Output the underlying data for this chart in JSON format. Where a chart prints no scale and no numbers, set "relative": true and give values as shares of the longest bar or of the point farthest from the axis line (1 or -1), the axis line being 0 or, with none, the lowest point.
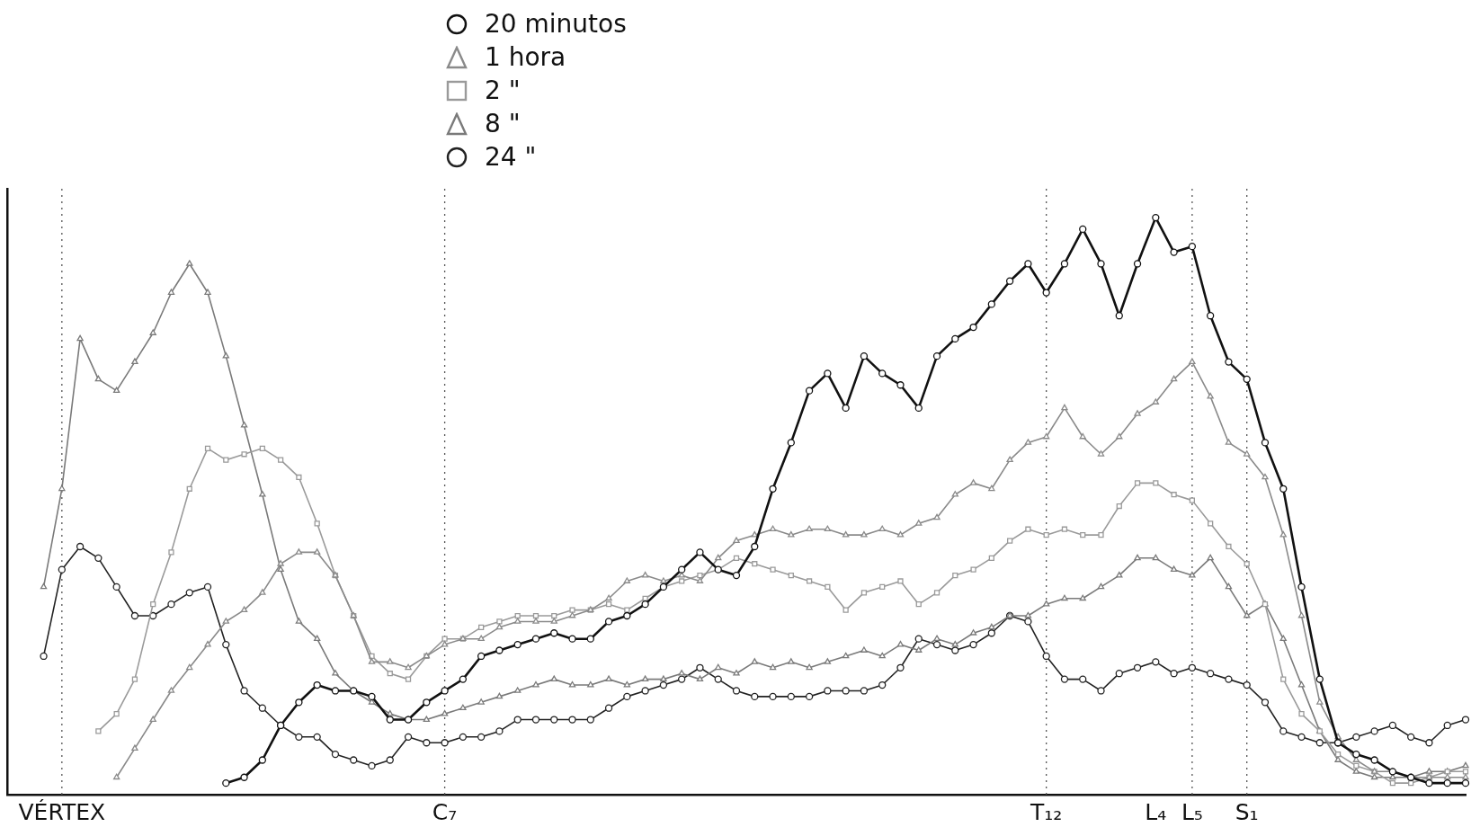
{
  "chart_data": {
    "type": "line",
    "relative": true,
    "legend": "top",
    "grid": false,
    "line_style": "solid",
    "categories": [
      null,
      null,
      null,
      "VÉRTEX",
      null,
      null,
      null,
      null,
      null,
      null,
      null,
      null,
      null,
      null,
      null,
      null,
      null,
      null,
      null,
      null,
      null,
      null,
      null,
      null,
      "C₇",
      null,
      null,
      null,
      null,
      null,
      null,
      null,
      null,
      null,
      null,
      null,
      null,
      null,
      null,
      null,
      null,
      null,
      null,
      null,
      null,
      null,
      null,
      null,
      null,
      null,
      null,
      null,
      null,
      null,
      null,
      null,
      null,
      "T₁₂",
      null,
      null,
      null,
      null,
      null,
      "L₄",
      null,
      "L₅",
      null,
      null,
      "S₁",
      null,
      null,
      null,
      null,
      null,
      null,
      null,
      null,
      null,
      null,
      null,
      null
    ],
    "ref_lines": [
      {
        "axis": "x",
        "value": "VÉRTEX",
        "line_style": "dotted",
        "color": "#555555"
      },
      {
        "axis": "x",
        "value": "C₇",
        "line_style": "dotted",
        "color": "#555555"
      },
      {
        "axis": "x",
        "value": "T₁₂",
        "line_style": "dotted",
        "color": "#555555"
      },
      {
        "axis": "x",
        "value": "L₅",
        "line_style": "dotted",
        "color": "#555555"
      },
      {
        "axis": "x",
        "value": "S₁",
        "line_style": "dotted",
        "color": "#555555"
      }
    ],
    "series": [
      {
        "name": "20 minutos",
        "color": "#111111",
        "marker": "circle",
        "values": [
          null,
          null,
          null,
          null,
          null,
          null,
          null,
          null,
          null,
          null,
          null,
          null,
          0.02,
          0.03,
          0.06,
          0.12,
          0.16,
          0.19,
          0.18,
          0.18,
          0.17,
          0.13,
          0.13,
          0.16,
          0.18,
          0.2,
          0.24,
          0.25,
          0.26,
          0.27,
          0.28,
          0.27,
          0.27,
          0.3,
          0.31,
          0.33,
          0.36,
          0.39,
          0.42,
          0.39,
          0.38,
          0.43,
          0.53,
          0.61,
          0.7,
          0.73,
          0.67,
          0.76,
          0.73,
          0.71,
          0.67,
          0.76,
          0.79,
          0.81,
          0.85,
          0.89,
          0.92,
          0.87,
          0.92,
          0.98,
          0.92,
          0.83,
          0.92,
          1.0,
          0.94,
          0.95,
          0.83,
          0.75,
          0.72,
          0.61,
          0.53,
          0.36,
          0.2,
          0.09,
          0.07,
          0.06,
          0.04,
          0.03,
          0.02,
          0.02,
          0.02
        ]
      },
      {
        "name": "1 hora",
        "color": "#8a8a8a",
        "marker": "triangle",
        "values": [
          null,
          null,
          null,
          null,
          null,
          null,
          0.03,
          0.08,
          0.13,
          0.18,
          0.22,
          0.26,
          0.3,
          0.32,
          0.35,
          0.4,
          0.42,
          0.42,
          0.38,
          0.31,
          0.23,
          0.23,
          0.22,
          0.24,
          0.26,
          0.27,
          0.27,
          0.29,
          0.3,
          0.3,
          0.3,
          0.31,
          0.32,
          0.34,
          0.37,
          0.38,
          0.37,
          0.38,
          0.37,
          0.41,
          0.44,
          0.45,
          0.46,
          0.45,
          0.46,
          0.46,
          0.45,
          0.45,
          0.46,
          0.45,
          0.47,
          0.48,
          0.52,
          0.54,
          0.53,
          0.58,
          0.61,
          0.62,
          0.67,
          0.62,
          0.59,
          0.62,
          0.66,
          0.68,
          0.72,
          0.75,
          0.69,
          0.61,
          0.59,
          0.55,
          0.45,
          0.31,
          0.16,
          0.1,
          0.06,
          0.04,
          0.04,
          0.03,
          0.03,
          0.03,
          0.03
        ]
      },
      {
        "name": "2 \"",
        "color": "#9a9a9a",
        "marker": "square",
        "values": [
          null,
          null,
          null,
          null,
          null,
          0.11,
          0.14,
          0.2,
          0.33,
          0.42,
          0.53,
          0.6,
          0.58,
          0.59,
          0.6,
          0.58,
          0.55,
          0.47,
          0.38,
          0.31,
          0.24,
          0.21,
          0.2,
          0.24,
          0.27,
          0.27,
          0.29,
          0.3,
          0.31,
          0.31,
          0.31,
          0.32,
          0.32,
          0.33,
          0.32,
          0.34,
          0.36,
          0.37,
          0.38,
          0.39,
          0.41,
          0.4,
          0.39,
          0.38,
          0.37,
          0.36,
          0.32,
          0.35,
          0.36,
          0.37,
          0.33,
          0.35,
          0.38,
          0.39,
          0.41,
          0.44,
          0.46,
          0.45,
          0.46,
          0.45,
          0.45,
          0.5,
          0.54,
          0.54,
          0.52,
          0.51,
          0.47,
          0.43,
          0.4,
          0.33,
          0.2,
          0.14,
          0.11,
          0.07,
          0.05,
          0.04,
          0.02,
          0.02,
          0.03,
          0.04,
          0.04
        ]
      },
      {
        "name": "8 \"",
        "color": "#7a7a7a",
        "marker": "triangle",
        "values": [
          null,
          null,
          0.36,
          0.53,
          0.79,
          0.72,
          0.7,
          0.75,
          0.8,
          0.87,
          0.92,
          0.87,
          0.76,
          0.64,
          0.52,
          0.39,
          0.3,
          0.27,
          0.21,
          0.18,
          0.16,
          0.14,
          0.13,
          0.13,
          0.14,
          0.15,
          0.16,
          0.17,
          0.18,
          0.19,
          0.2,
          0.19,
          0.19,
          0.2,
          0.19,
          0.2,
          0.2,
          0.21,
          0.2,
          0.22,
          0.21,
          0.23,
          0.22,
          0.23,
          0.22,
          0.23,
          0.24,
          0.25,
          0.24,
          0.26,
          0.25,
          0.27,
          0.26,
          0.28,
          0.29,
          0.31,
          0.31,
          0.33,
          0.34,
          0.34,
          0.36,
          0.38,
          0.41,
          0.41,
          0.39,
          0.38,
          0.41,
          0.36,
          0.31,
          0.33,
          0.27,
          0.19,
          0.11,
          0.06,
          0.04,
          0.03,
          0.03,
          0.03,
          0.04,
          0.04,
          0.05
        ]
      },
      {
        "name": "24 \"",
        "color": "#222222",
        "marker": "circle",
        "values": [
          null,
          null,
          0.24,
          0.39,
          0.43,
          0.41,
          0.36,
          0.31,
          0.31,
          0.33,
          0.35,
          0.36,
          0.26,
          0.18,
          0.15,
          0.12,
          0.1,
          0.1,
          0.07,
          0.06,
          0.05,
          0.06,
          0.1,
          0.09,
          0.09,
          0.1,
          0.1,
          0.11,
          0.13,
          0.13,
          0.13,
          0.13,
          0.13,
          0.15,
          0.17,
          0.18,
          0.19,
          0.2,
          0.22,
          0.2,
          0.18,
          0.17,
          0.17,
          0.17,
          0.17,
          0.18,
          0.18,
          0.18,
          0.19,
          0.22,
          0.27,
          0.26,
          0.25,
          0.26,
          0.28,
          0.31,
          0.3,
          0.24,
          0.2,
          0.2,
          0.18,
          0.21,
          0.22,
          0.23,
          0.21,
          0.22,
          0.21,
          0.2,
          0.19,
          0.16,
          0.11,
          0.1,
          0.09,
          0.09,
          0.1,
          0.11,
          0.12,
          0.1,
          0.09,
          0.12,
          0.13
        ]
      }
    ]
  }
}
